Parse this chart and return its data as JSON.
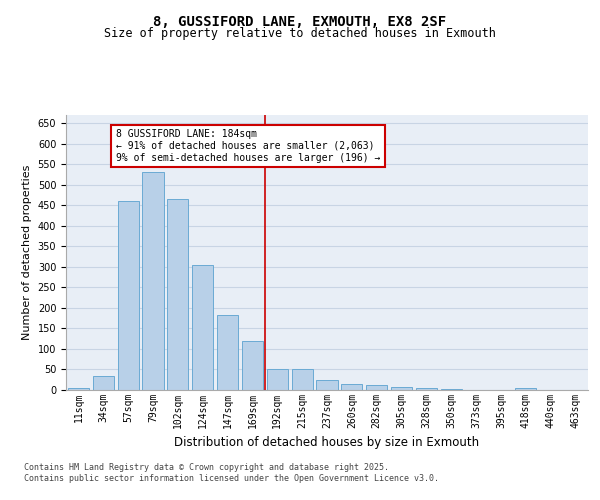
{
  "title": "8, GUSSIFORD LANE, EXMOUTH, EX8 2SF",
  "subtitle": "Size of property relative to detached houses in Exmouth",
  "xlabel": "Distribution of detached houses by size in Exmouth",
  "ylabel": "Number of detached properties",
  "categories": [
    "11sqm",
    "34sqm",
    "57sqm",
    "79sqm",
    "102sqm",
    "124sqm",
    "147sqm",
    "169sqm",
    "192sqm",
    "215sqm",
    "237sqm",
    "260sqm",
    "282sqm",
    "305sqm",
    "328sqm",
    "350sqm",
    "373sqm",
    "395sqm",
    "418sqm",
    "440sqm",
    "463sqm"
  ],
  "values": [
    5,
    35,
    460,
    530,
    465,
    305,
    182,
    120,
    50,
    50,
    25,
    15,
    12,
    8,
    5,
    2,
    1,
    0,
    4,
    1,
    1
  ],
  "bar_color": "#b8d0e8",
  "bar_edge_color": "#6aaad4",
  "background_color": "#e8eef6",
  "property_label": "8 GUSSIFORD LANE: 184sqm",
  "annotation_line1": "← 91% of detached houses are smaller (2,063)",
  "annotation_line2": "9% of semi-detached houses are larger (196) →",
  "vline_color": "#cc0000",
  "annotation_box_color": "#cc0000",
  "ylim": [
    0,
    670
  ],
  "yticks": [
    0,
    50,
    100,
    150,
    200,
    250,
    300,
    350,
    400,
    450,
    500,
    550,
    600,
    650
  ],
  "footnote1": "Contains HM Land Registry data © Crown copyright and database right 2025.",
  "footnote2": "Contains public sector information licensed under the Open Government Licence v3.0.",
  "grid_color": "#c8d4e4",
  "title_fontsize": 10,
  "subtitle_fontsize": 8.5,
  "ylabel_fontsize": 8,
  "xlabel_fontsize": 8.5,
  "tick_fontsize": 7,
  "annot_fontsize": 7
}
